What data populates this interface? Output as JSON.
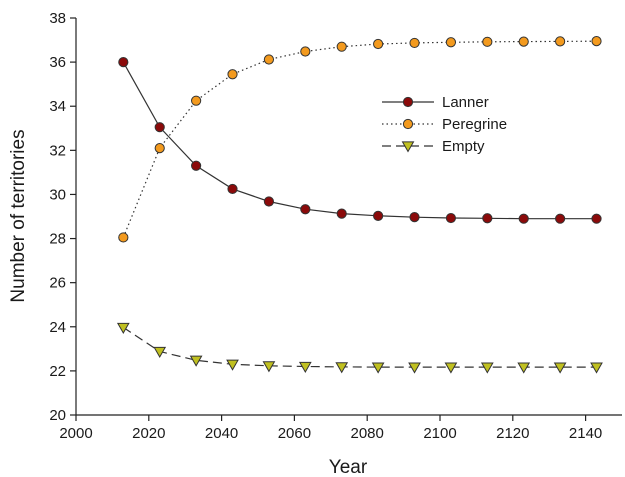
{
  "chart_data": {
    "type": "line",
    "title": "",
    "xlabel": "Year",
    "ylabel": "Number of territories",
    "xlim": [
      2000,
      2150
    ],
    "ylim": [
      20,
      38
    ],
    "xticks": [
      2000,
      2020,
      2040,
      2060,
      2080,
      2100,
      2120,
      2140
    ],
    "yticks": [
      20,
      22,
      24,
      26,
      28,
      30,
      32,
      34,
      36,
      38
    ],
    "grid": false,
    "legend_position": "upper-right",
    "x": [
      2013,
      2023,
      2033,
      2043,
      2053,
      2063,
      2073,
      2083,
      2093,
      2103,
      2113,
      2123,
      2133,
      2143
    ],
    "series": [
      {
        "name": "Lanner",
        "marker": "circle",
        "line_style": "solid",
        "marker_color": "#8b0a0a",
        "values": [
          36.0,
          33.05,
          31.3,
          30.25,
          29.68,
          29.33,
          29.13,
          29.03,
          28.97,
          28.93,
          28.92,
          28.9,
          28.9,
          28.9
        ]
      },
      {
        "name": "Peregrine",
        "marker": "circle",
        "line_style": "dotted",
        "marker_color": "#f39a1e",
        "values": [
          28.05,
          32.1,
          34.25,
          35.45,
          36.12,
          36.48,
          36.7,
          36.82,
          36.87,
          36.9,
          36.92,
          36.93,
          36.94,
          36.95
        ]
      },
      {
        "name": "Empty",
        "marker": "triangle-down",
        "line_style": "dashed",
        "marker_color": "#c0c020",
        "values": [
          23.97,
          22.88,
          22.48,
          22.3,
          22.23,
          22.2,
          22.18,
          22.17,
          22.17,
          22.17,
          22.17,
          22.17,
          22.17,
          22.17
        ]
      }
    ]
  }
}
